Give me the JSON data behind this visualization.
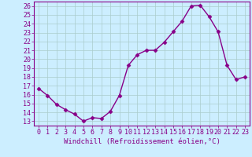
{
  "x": [
    0,
    1,
    2,
    3,
    4,
    5,
    6,
    7,
    8,
    9,
    10,
    11,
    12,
    13,
    14,
    15,
    16,
    17,
    18,
    19,
    20,
    21,
    22,
    23
  ],
  "y": [
    16.7,
    15.9,
    14.9,
    14.3,
    13.8,
    13.0,
    13.4,
    13.3,
    14.1,
    15.9,
    19.3,
    20.5,
    21.0,
    21.0,
    21.9,
    23.1,
    24.3,
    26.0,
    26.1,
    24.8,
    23.1,
    19.3,
    17.7,
    18.0
  ],
  "line_color": "#880088",
  "marker": "D",
  "markersize": 2.5,
  "linewidth": 1.0,
  "bg_color": "#cceeff",
  "grid_color": "#aacccc",
  "xlabel": "Windchill (Refroidissement éolien,°C)",
  "xlim": [
    -0.5,
    23.5
  ],
  "ylim": [
    12.5,
    26.5
  ],
  "yticks": [
    13,
    14,
    15,
    16,
    17,
    18,
    19,
    20,
    21,
    22,
    23,
    24,
    25,
    26
  ],
  "xticks": [
    0,
    1,
    2,
    3,
    4,
    5,
    6,
    7,
    8,
    9,
    10,
    11,
    12,
    13,
    14,
    15,
    16,
    17,
    18,
    19,
    20,
    21,
    22,
    23
  ],
  "axis_color": "#880088",
  "label_fontsize": 6.5,
  "tick_fontsize": 6.0
}
